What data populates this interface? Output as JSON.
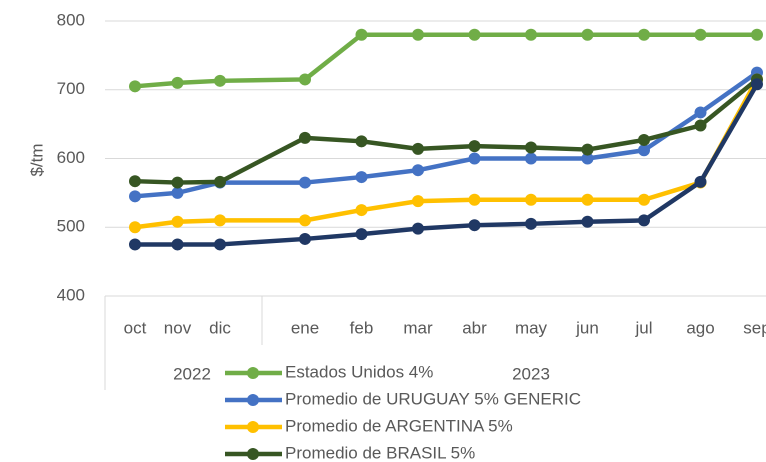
{
  "chart_data": {
    "type": "line",
    "y_label": "$/tm",
    "category_groups": [
      {
        "label": "2022",
        "categories": [
          "oct",
          "nov",
          "dic"
        ]
      },
      {
        "label": "2023",
        "categories": [
          "ene",
          "feb",
          "mar",
          "abr",
          "may",
          "jun",
          "jul",
          "ago",
          "sep"
        ]
      }
    ],
    "ylim": [
      400,
      800
    ],
    "yticks": [
      400,
      500,
      600,
      700,
      800
    ],
    "grid": true,
    "series": [
      {
        "name": "Estados Unidos 4%",
        "color": "#70ad47",
        "values": [
          705,
          710,
          713,
          715,
          780,
          780,
          780,
          780,
          780,
          780,
          780,
          780
        ]
      },
      {
        "name": "Promedio de URUGUAY 5% GENERIC",
        "color": "#4472c4",
        "values": [
          545,
          550,
          565,
          565,
          573,
          583,
          600,
          600,
          600,
          612,
          667,
          725
        ]
      },
      {
        "name": "Promedio de ARGENTINA 5%",
        "color": "#ffc000",
        "values": [
          500,
          508,
          510,
          510,
          525,
          538,
          540,
          540,
          540,
          540,
          565,
          715
        ]
      },
      {
        "name": "Promedio de BRASIL 5%",
        "color": "#375623",
        "values": [
          567,
          565,
          566,
          630,
          625,
          614,
          618,
          616,
          613,
          627,
          648,
          715
        ]
      },
      {
        "color": "#203864",
        "values": [
          475,
          475,
          475,
          483,
          490,
          498,
          503,
          505,
          508,
          510,
          566,
          708
        ]
      }
    ],
    "legend": "bottom"
  }
}
